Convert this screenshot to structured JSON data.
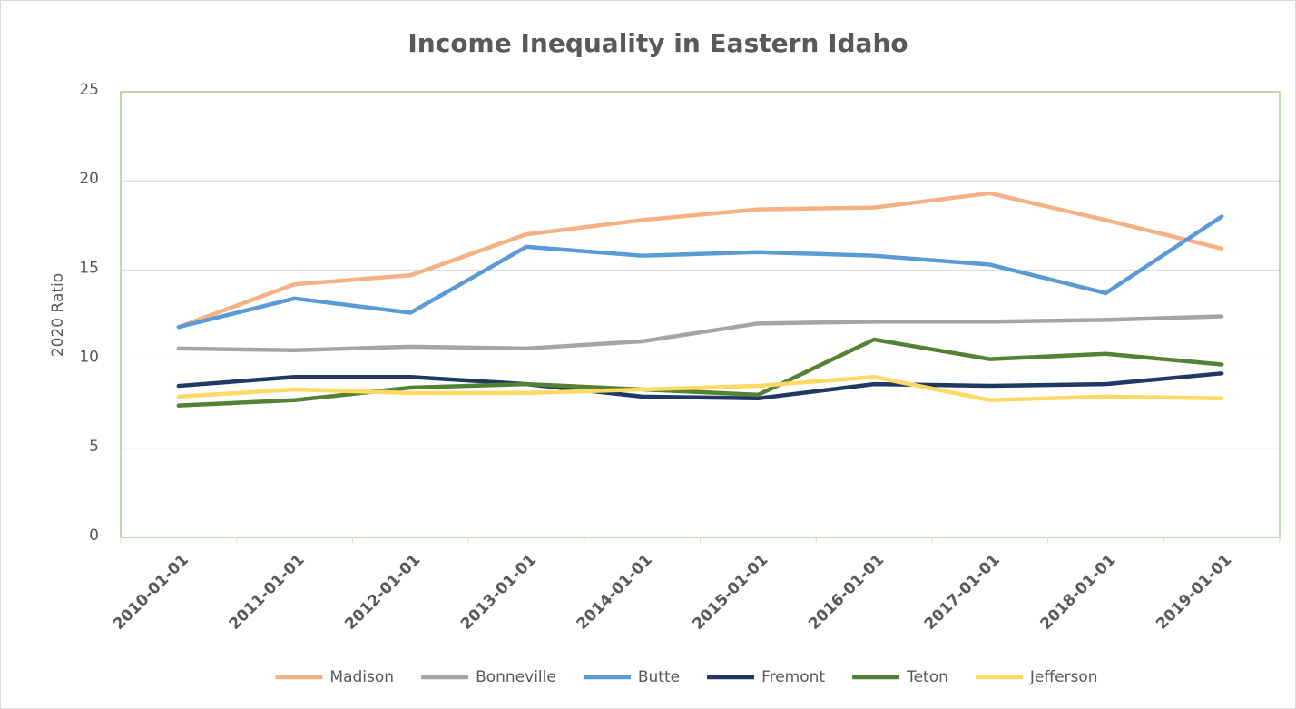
{
  "chart_data": {
    "type": "line",
    "title": "Income Inequality in Eastern Idaho",
    "y_label": "2020 Ratio",
    "categories": [
      "2010-01-01",
      "2011-01-01",
      "2012-01-01",
      "2013-01-01",
      "2014-01-01",
      "2015-01-01",
      "2016-01-01",
      "2017-01-01",
      "2018-01-01",
      "2019-01-01"
    ],
    "series": [
      {
        "name": "Madison",
        "color": "#f4b183",
        "values": [
          11.8,
          14.2,
          14.7,
          17.0,
          17.8,
          18.4,
          18.5,
          19.3,
          17.8,
          16.2
        ]
      },
      {
        "name": "Bonneville",
        "color": "#a5a5a5",
        "values": [
          10.6,
          10.5,
          10.7,
          10.6,
          11.0,
          12.0,
          12.1,
          12.1,
          12.2,
          12.4
        ]
      },
      {
        "name": "Butte",
        "color": "#5b9bd5",
        "values": [
          11.8,
          13.4,
          12.6,
          16.3,
          15.8,
          16.0,
          15.8,
          15.3,
          13.7,
          18.0
        ]
      },
      {
        "name": "Fremont",
        "color": "#203864",
        "values": [
          8.5,
          9.0,
          9.0,
          8.6,
          7.9,
          7.8,
          8.6,
          8.5,
          8.6,
          9.2
        ]
      },
      {
        "name": "Teton",
        "color": "#548235",
        "values": [
          7.4,
          7.7,
          8.4,
          8.6,
          8.3,
          8.0,
          11.1,
          10.0,
          10.3,
          9.7
        ]
      },
      {
        "name": "Jefferson",
        "color": "#ffd966",
        "values": [
          7.9,
          8.3,
          8.1,
          8.1,
          8.3,
          8.5,
          9.0,
          7.7,
          7.9,
          7.8
        ]
      }
    ],
    "ylim": [
      0,
      25
    ],
    "yticks": [
      0,
      5,
      10,
      15,
      20,
      25
    ],
    "grid": true,
    "legend": "bottom"
  }
}
